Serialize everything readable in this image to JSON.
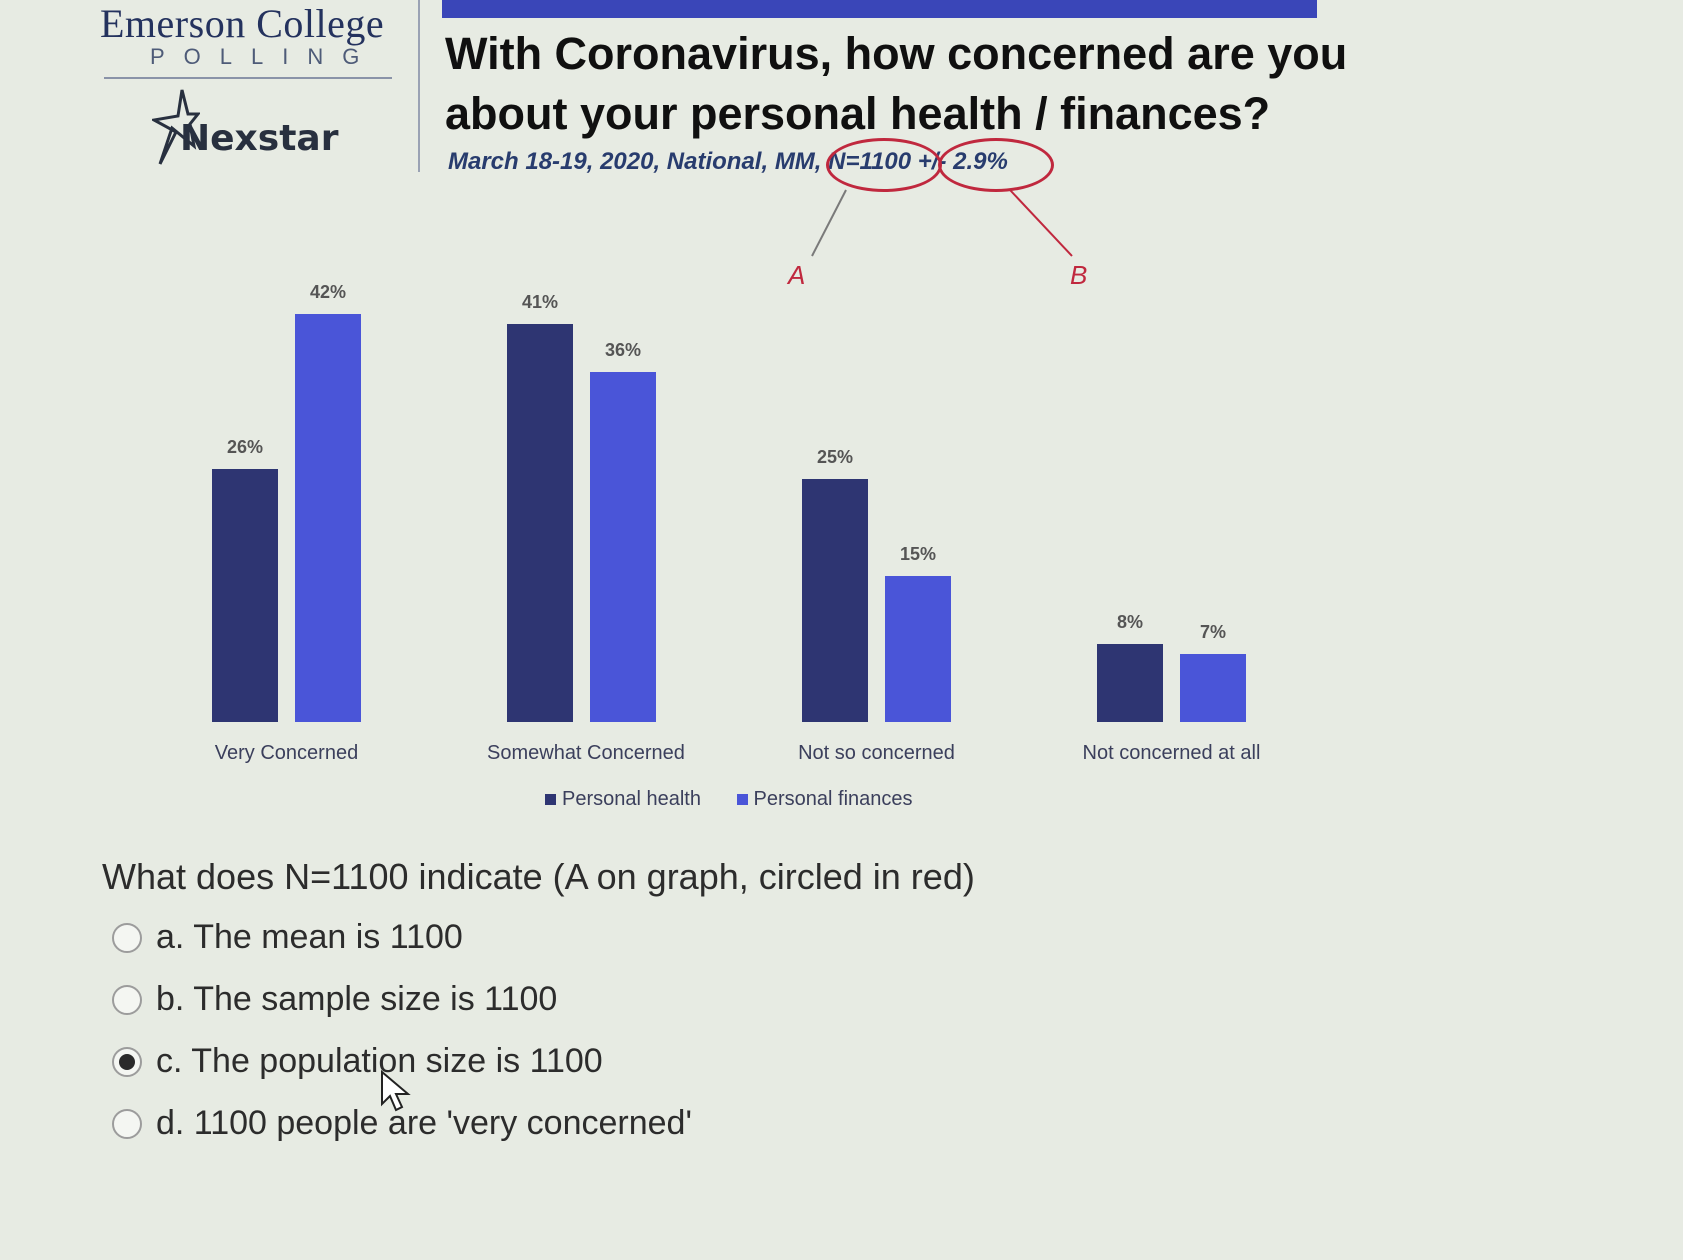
{
  "header": {
    "logo_primary": "Emerson College",
    "logo_secondary": "POLLING",
    "partner_logo": "Nexstar",
    "title_line1": "With Coronavirus, how concerned are you",
    "title_line2": "about your personal health / finances?",
    "subtitle": "March 18-19, 2020, National, MM, N=1100 +/- 2.9%"
  },
  "annotations": {
    "label_a": "A",
    "label_b": "B",
    "color": "#c0283e"
  },
  "chart_data": {
    "type": "bar",
    "categories": [
      "Very Concerned",
      "Somewhat Concerned",
      "Not so concerned",
      "Not concerned at all"
    ],
    "series": [
      {
        "name": "Personal health",
        "values": [
          26,
          41,
          25,
          8
        ],
        "labels": [
          "26%",
          "41%",
          "25%",
          "8%"
        ],
        "color": "#2e3572"
      },
      {
        "name": "Personal finances",
        "values": [
          42,
          36,
          15,
          7
        ],
        "labels": [
          "42%",
          "36%",
          "15%",
          "7%"
        ],
        "color": "#4a55d8"
      }
    ],
    "ylim": [
      0,
      42
    ],
    "legend_position": "bottom"
  },
  "question": {
    "text": "What does N=1100 indicate (A on graph, circled in red)",
    "options": [
      {
        "label": "a. The mean is 1100",
        "selected": false
      },
      {
        "label": "b. The sample size is 1100",
        "selected": false
      },
      {
        "label": "c. The population size is 1100",
        "selected": true
      },
      {
        "label": "d. 1100 people are 'very concerned'",
        "selected": false
      }
    ]
  }
}
